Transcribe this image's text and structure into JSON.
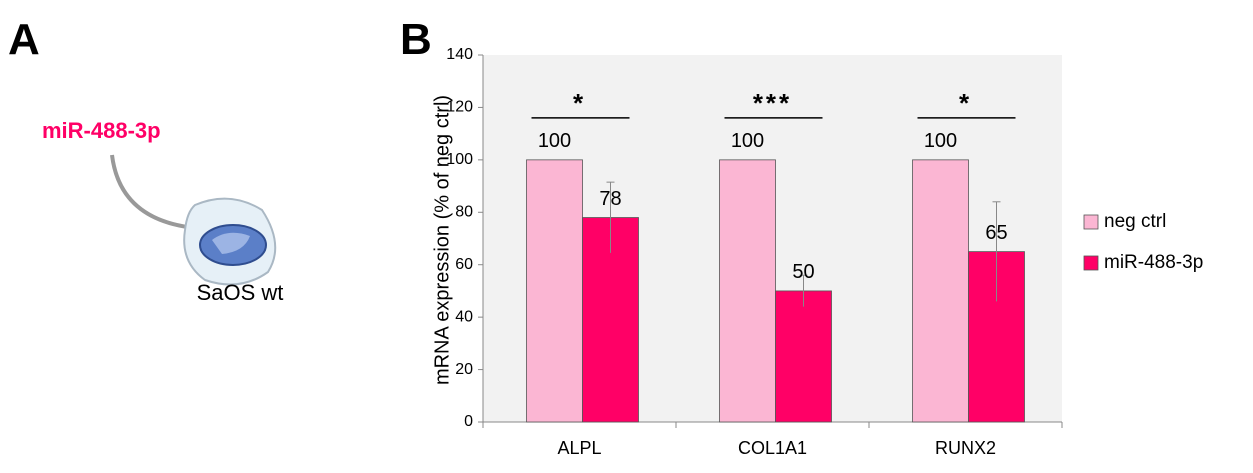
{
  "panel_a": {
    "label": "A",
    "mirna": "miR-488-3p",
    "cell": "SaOS wt"
  },
  "chart_data": {
    "type": "bar",
    "panel_label": "B",
    "ylabel": "mRNA expression (% of neg ctrl)",
    "categories": [
      "ALPL",
      "COL1A1",
      "RUNX2"
    ],
    "series": [
      {
        "name": "neg ctrl",
        "color": "#fbb6d3",
        "values": [
          100,
          100,
          100
        ]
      },
      {
        "name": "miR-488-3p",
        "color": "#ff0066",
        "values": [
          78,
          50,
          65
        ],
        "errors": [
          13.5,
          6,
          19
        ]
      }
    ],
    "significance": [
      "*",
      "***",
      "*"
    ],
    "ylim": [
      0,
      140
    ],
    "yticks": [
      0,
      20,
      40,
      60,
      80,
      100,
      120,
      140
    ],
    "legend": "right",
    "plot_background": "#f2f2f2"
  }
}
